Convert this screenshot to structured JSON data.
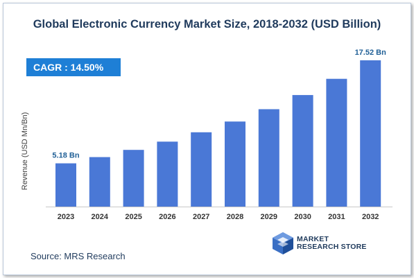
{
  "title": "Global Electronic Currency Market Size, 2018-2032 (USD Billion)",
  "cagr_label": "CAGR : 14.50%",
  "source": "Source: MRS Research",
  "logo_lines": [
    "MARKET",
    "RESEARCH STORE"
  ],
  "colors": {
    "bar": "#4a78d6",
    "cagr_bg": "#1e7fd6",
    "label": "#1f5f96",
    "title": "#1f3a5c"
  },
  "chart_data": {
    "type": "bar",
    "title": "Global Electronic Currency Market Size, 2018-2032 (USD Billion)",
    "xlabel": "",
    "ylabel": "Revenue (USD Mn/Bn)",
    "categories": [
      "2023",
      "2024",
      "2025",
      "2026",
      "2027",
      "2028",
      "2029",
      "2030",
      "2031",
      "2032"
    ],
    "values": [
      5.18,
      5.93,
      6.79,
      7.78,
      8.9,
      10.19,
      11.67,
      13.36,
      15.3,
      17.52
    ],
    "data_labels": {
      "2023": "5.18 Bn",
      "2032": "17.52 Bn"
    },
    "ylim": [
      0,
      18.6
    ],
    "grid": false,
    "legend": "none"
  }
}
